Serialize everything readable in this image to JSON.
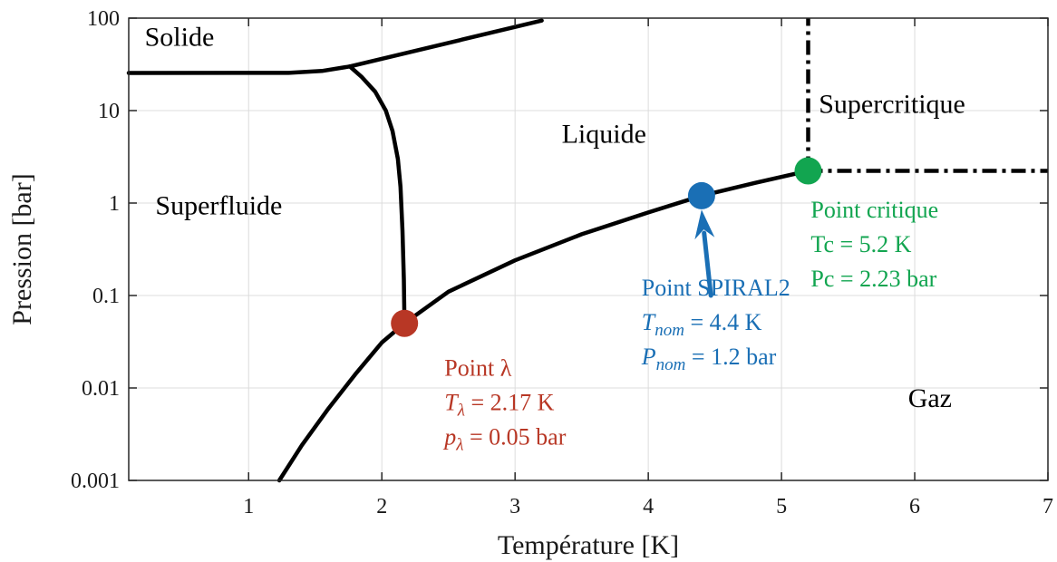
{
  "chart_data": {
    "type": "line",
    "xlabel": "Température [K]",
    "ylabel": "Pression [bar]",
    "xlim": [
      0.1,
      7
    ],
    "ylim": [
      0.001,
      100
    ],
    "yscale": "log",
    "grid": true,
    "xticks": [
      1,
      2,
      3,
      4,
      5,
      6,
      7
    ],
    "yticks": [
      {
        "value": 0.001,
        "label": "0.001"
      },
      {
        "value": 0.01,
        "label": "0.01"
      },
      {
        "value": 0.1,
        "label": "0.1"
      },
      {
        "value": 1,
        "label": "1"
      },
      {
        "value": 10,
        "label": "10"
      },
      {
        "value": 100,
        "label": "100"
      }
    ],
    "series": [
      {
        "points": [
          [
            0.1,
            25.5
          ],
          [
            1.3,
            25.6
          ],
          [
            1.55,
            26.8
          ],
          [
            1.76,
            30
          ]
        ]
      },
      {
        "points": [
          [
            1.76,
            30
          ],
          [
            3.2,
            94
          ]
        ]
      },
      {
        "points": [
          [
            1.76,
            30
          ],
          [
            1.85,
            23
          ],
          [
            1.95,
            16
          ],
          [
            2.03,
            10
          ],
          [
            2.08,
            6
          ],
          [
            2.12,
            3
          ],
          [
            2.14,
            1.5
          ],
          [
            2.155,
            0.5
          ],
          [
            2.165,
            0.15
          ],
          [
            2.17,
            0.05
          ]
        ]
      },
      {
        "points": [
          [
            1.23,
            0.001
          ],
          [
            1.4,
            0.0024
          ],
          [
            1.6,
            0.006
          ],
          [
            1.8,
            0.014
          ],
          [
            2.0,
            0.031
          ],
          [
            2.17,
            0.05
          ],
          [
            2.5,
            0.11
          ],
          [
            3.0,
            0.24
          ],
          [
            3.5,
            0.46
          ],
          [
            4.0,
            0.79
          ],
          [
            4.4,
            1.2
          ],
          [
            4.8,
            1.65
          ],
          [
            5.2,
            2.23
          ]
        ]
      },
      {
        "style": "dashdot",
        "points": [
          [
            5.2,
            2.23
          ],
          [
            5.2,
            100
          ]
        ]
      },
      {
        "style": "dashdot",
        "points": [
          [
            5.2,
            2.23
          ],
          [
            7,
            2.23
          ]
        ]
      }
    ],
    "markers": [
      {
        "x": 2.17,
        "y": 0.05,
        "color": "#b83725"
      },
      {
        "x": 4.4,
        "y": 1.2,
        "color": "#1a6fb5"
      },
      {
        "x": 5.2,
        "y": 2.23,
        "color": "#12a550"
      }
    ],
    "regions": [
      {
        "label": "Solide",
        "x": 0.22,
        "y": 50
      },
      {
        "label": "Superfluide",
        "x": 0.3,
        "y": 0.75
      },
      {
        "label": "Liquide",
        "x": 3.35,
        "y": 4.5
      },
      {
        "label": "Supercritique",
        "x": 5.28,
        "y": 9.5
      },
      {
        "label": "Gaz",
        "x": 5.95,
        "y": 0.0062
      }
    ],
    "annotations": [
      {
        "color": "#b83725",
        "x": 2.47,
        "y": 0.0135,
        "lines": [
          "Point λ",
          "T_λ = 2.17 K",
          "p_λ = 0.05 bar"
        ]
      },
      {
        "color": "#1a6fb5",
        "x": 3.95,
        "y": 0.1,
        "lines": [
          "Point SPIRAL2",
          "T_nom = 4.4 K",
          "P_nom = 1.2 bar"
        ]
      },
      {
        "color": "#12a550",
        "x": 5.22,
        "y": 0.7,
        "lines": [
          "Point critique",
          "Tc = 5.2 K",
          "Pc = 2.23 bar"
        ]
      }
    ],
    "arrow": {
      "color": "#1a6fb5",
      "from": [
        4.47,
        0.1
      ],
      "to": [
        4.4,
        0.85
      ]
    }
  }
}
